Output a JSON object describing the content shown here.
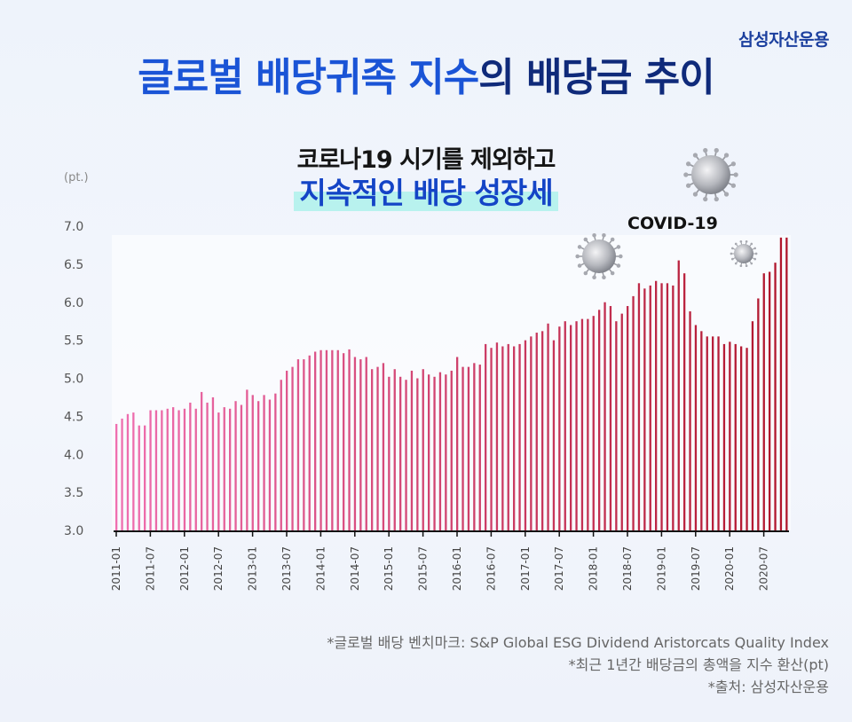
{
  "brand": "삼성자산운용",
  "title_part1": "글로벌 배당귀족 지수",
  "title_part2": "의 배당금 추이",
  "subtitle_line1": "코로나19 시기를 제외하고",
  "subtitle_line2": "지속적인 배당 성장세",
  "covid_label": "COVID-19",
  "notes": [
    "*글로벌 배당 벤치마크: S&P Global ESG Dividend Aristorcats Quality Index",
    "*최근 1년간 배당금의 총액을 지수 환산(pt)",
    "*출처: 삼성자산운용"
  ],
  "colors": {
    "bar_start": "#ef6fb0",
    "bar_end": "#b0152b",
    "title_blue": "#1a54d6",
    "title_navy": "#0f2a7a"
  },
  "chart_data": {
    "type": "bar",
    "ylabel": "(pt.)",
    "ylim": [
      3.0,
      7.0
    ],
    "yticks": [
      "3.0",
      "3.5",
      "4.0",
      "4.5",
      "5.0",
      "5.5",
      "6.0",
      "6.5",
      "7.0"
    ],
    "xticks": [
      "2011-01",
      "2011-07",
      "2012-01",
      "2012-07",
      "2013-01",
      "2013-07",
      "2014-01",
      "2014-07",
      "2015-01",
      "2015-07",
      "2016-01",
      "2016-07",
      "2017-01",
      "2017-07",
      "2018-01",
      "2018-07",
      "2019-01",
      "2019-07",
      "2020-01",
      "2020-07"
    ],
    "start_month": "2011-01",
    "values": [
      4.4,
      4.47,
      4.53,
      4.55,
      4.38,
      4.38,
      4.58,
      4.58,
      4.58,
      4.6,
      4.62,
      4.58,
      4.6,
      4.68,
      4.6,
      4.82,
      4.68,
      4.75,
      4.55,
      4.62,
      4.6,
      4.7,
      4.65,
      4.85,
      4.78,
      4.7,
      4.78,
      4.72,
      4.8,
      4.98,
      5.1,
      5.15,
      5.25,
      5.25,
      5.3,
      5.35,
      5.37,
      5.37,
      5.37,
      5.37,
      5.33,
      5.38,
      5.28,
      5.25,
      5.28,
      5.12,
      5.15,
      5.2,
      5.02,
      5.12,
      5.02,
      4.98,
      5.1,
      5.0,
      5.12,
      5.05,
      5.02,
      5.08,
      5.05,
      5.1,
      5.28,
      5.15,
      5.15,
      5.2,
      5.18,
      5.45,
      5.4,
      5.47,
      5.42,
      5.45,
      5.42,
      5.45,
      5.5,
      5.55,
      5.6,
      5.62,
      5.72,
      5.5,
      5.68,
      5.75,
      5.7,
      5.75,
      5.78,
      5.78,
      5.82,
      5.9,
      6.0,
      5.95,
      5.75,
      5.85,
      5.95,
      6.08,
      6.25,
      6.18,
      6.22,
      6.28,
      6.25,
      6.25,
      6.22,
      6.55,
      6.38,
      5.88,
      5.7,
      5.62,
      5.55,
      5.55,
      5.55,
      5.45,
      5.48,
      5.45,
      5.42,
      5.4,
      5.75,
      6.05,
      6.38,
      6.4,
      6.52,
      6.85,
      6.85
    ]
  }
}
